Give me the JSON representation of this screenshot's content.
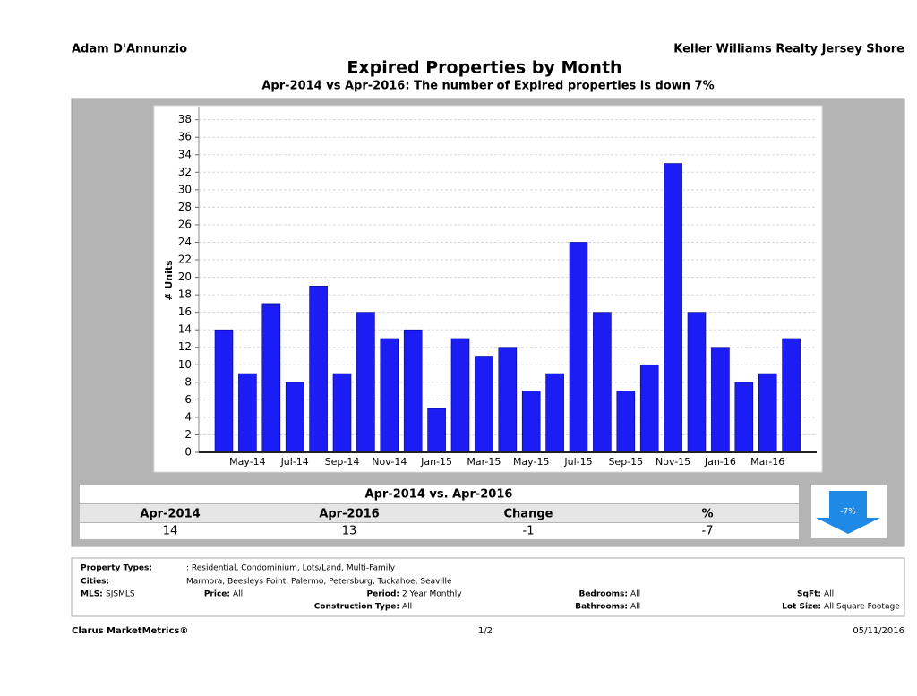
{
  "header": {
    "agent": "Adam D'Annunzio",
    "company": "Keller Williams Realty Jersey Shore"
  },
  "chart_data": {
    "type": "bar",
    "title": "Expired Properties by Month",
    "subtitle": "Apr-2014 vs Apr-2016: The number of Expired  properties is down 7%",
    "y_label": "# Units",
    "categories": [
      null,
      "May-14",
      null,
      "Jul-14",
      null,
      "Sep-14",
      null,
      "Nov-14",
      null,
      "Jan-15",
      null,
      "Mar-15",
      null,
      "May-15",
      null,
      "Jul-15",
      null,
      "Sep-15",
      null,
      "Nov-15",
      null,
      "Jan-16",
      null,
      "Mar-16",
      null
    ],
    "values": [
      14,
      9,
      17,
      8,
      19,
      9,
      16,
      13,
      14,
      5,
      13,
      11,
      12,
      7,
      9,
      24,
      16,
      7,
      10,
      33,
      16,
      12,
      8,
      9,
      13
    ],
    "color": "#1c1cf5",
    "ylim": [
      0,
      39.4
    ],
    "yticks": [
      0,
      2,
      4,
      6,
      8,
      10,
      12,
      14,
      16,
      18,
      20,
      22,
      24,
      26,
      28,
      30,
      32,
      34,
      36,
      38
    ],
    "grid": true
  },
  "comparison": {
    "title": "Apr-2014 vs. Apr-2016",
    "columns": [
      "Apr-2014",
      "Apr-2016",
      "Change",
      "%"
    ],
    "values": [
      14,
      13,
      -1,
      -7
    ],
    "badge": "-7%"
  },
  "filters": [
    {
      "label": "Property Types:",
      "value": ": Residential, Condominium, Lots/Land, Multi-Family"
    },
    {
      "label": "Cities:",
      "value": "Marmora, Beesleys Point, Palermo, Petersburg, Tuckahoe, Seaville"
    },
    {
      "label": "MLS:",
      "value": "SJSMLS"
    },
    {
      "label": "Price:",
      "value": "All"
    },
    {
      "label": "Period:",
      "value": "2 Year Monthly"
    },
    {
      "label": "Bedrooms:",
      "value": "All"
    },
    {
      "label": "SqFt:",
      "value": "All"
    },
    {
      "label": "Construction Type:",
      "value": "All"
    },
    {
      "label": "Bathrooms:",
      "value": "All"
    },
    {
      "label": "Lot Size:",
      "value": "All Square Footage"
    }
  ],
  "footer": {
    "brand": "Clarus MarketMetrics®",
    "page": "1/2",
    "date": "05/11/2016"
  }
}
